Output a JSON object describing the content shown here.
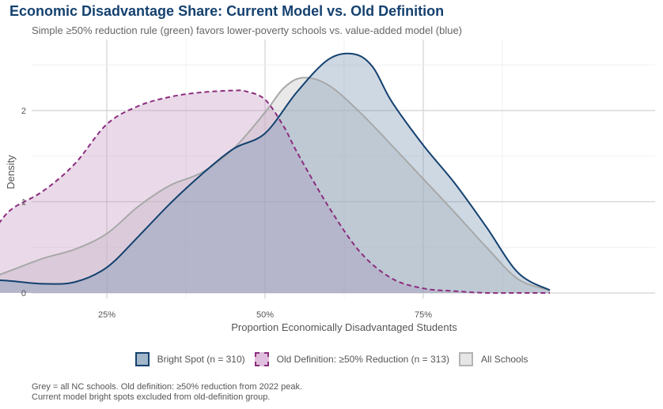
{
  "title": "Economic Disadvantage Share: Current Model vs. Old Definition",
  "subtitle": "Simple ≥50% reduction rule (green) favors lower-poverty schools vs. value-added model (blue)",
  "caption_lines": [
    "Grey = all NC schools. Old definition: ≥50% reduction from 2022 peak.",
    "Current model bright spots excluded from old-definition group."
  ],
  "legend": [
    {
      "label": "Bright Spot (n = 310)",
      "fill": "#a3b7cb",
      "stroke": "#14416f",
      "dashed": false
    },
    {
      "label": "Old Definition: ≥50% Reduction (n = 313)",
      "fill": "#dfbfdd",
      "stroke": "#8b2d7e",
      "dashed": true
    },
    {
      "label": "All Schools",
      "fill": "#e6e6e6",
      "stroke": "#b4b4b4",
      "dashed": false
    }
  ],
  "chart_data": {
    "type": "area",
    "title": "Economic Disadvantage Share: Current Model vs. Old Definition",
    "subtitle": "Simple ≥50% reduction rule (green) favors lower-poverty schools vs. value-added model (blue)",
    "xlabel": "Proportion Economically Disadvantaged Students",
    "ylabel": "Density",
    "xlim": [
      0.0,
      1.0
    ],
    "ylim": [
      0,
      2.75
    ],
    "x_ticks": [
      0.25,
      0.5,
      0.75
    ],
    "x_tick_labels": [
      "25%",
      "50%",
      "75%"
    ],
    "y_ticks": [
      0,
      1,
      2
    ],
    "y_tick_labels": [
      "0",
      "1",
      "2"
    ],
    "grid": true,
    "legend_position": "bottom",
    "series": [
      {
        "name": "All Schools",
        "fill": "#cfcfcf",
        "fill_opacity": 0.45,
        "stroke": "#a8a8a8",
        "dashed": false,
        "x": [
          0.05,
          0.1,
          0.15,
          0.2,
          0.25,
          0.3,
          0.35,
          0.4,
          0.45,
          0.5,
          0.53,
          0.56,
          0.6,
          0.65,
          0.7,
          0.75,
          0.8,
          0.85,
          0.9,
          0.95
        ],
        "y": [
          0.12,
          0.25,
          0.38,
          0.48,
          0.65,
          0.95,
          1.18,
          1.32,
          1.58,
          1.98,
          2.25,
          2.36,
          2.28,
          1.98,
          1.62,
          1.25,
          0.88,
          0.5,
          0.15,
          0.03
        ]
      },
      {
        "name": "Old Definition: ≥50% Reduction",
        "fill": "#c394c0",
        "fill_opacity": 0.35,
        "stroke": "#8b2d7e",
        "dashed": true,
        "x": [
          0.05,
          0.075,
          0.1,
          0.15,
          0.2,
          0.25,
          0.3,
          0.35,
          0.4,
          0.45,
          0.47,
          0.5,
          0.53,
          0.55,
          0.6,
          0.65,
          0.7,
          0.75,
          0.8,
          0.85,
          0.9,
          0.95
        ],
        "y": [
          0.48,
          0.72,
          0.92,
          1.12,
          1.42,
          1.85,
          2.05,
          2.15,
          2.2,
          2.22,
          2.21,
          2.12,
          1.82,
          1.55,
          0.95,
          0.45,
          0.16,
          0.05,
          0.02,
          0.0,
          0.0,
          0.0
        ]
      },
      {
        "name": "Bright Spot",
        "fill": "#6f8eae",
        "fill_opacity": 0.35,
        "stroke": "#14416f",
        "dashed": false,
        "x": [
          0.05,
          0.075,
          0.1,
          0.15,
          0.2,
          0.25,
          0.3,
          0.35,
          0.4,
          0.45,
          0.5,
          0.55,
          0.6,
          0.64,
          0.67,
          0.7,
          0.75,
          0.8,
          0.85,
          0.9,
          0.95
        ],
        "y": [
          0.12,
          0.14,
          0.13,
          0.1,
          0.12,
          0.28,
          0.62,
          0.98,
          1.3,
          1.58,
          1.75,
          2.2,
          2.56,
          2.62,
          2.48,
          2.1,
          1.62,
          1.2,
          0.72,
          0.22,
          0.03
        ]
      }
    ]
  }
}
